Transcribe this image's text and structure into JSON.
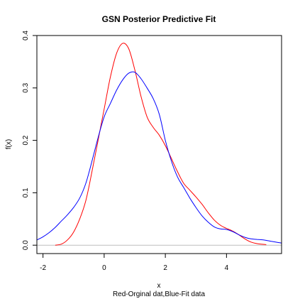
{
  "chart_data": {
    "type": "line",
    "title": "GSN Posterior Predictive Fit",
    "xlabel": "x",
    "subtitle": "Red-Orginal dat,Blue-Fit data",
    "ylabel": "f(x)",
    "xlim": [
      -2.2,
      5.8
    ],
    "ylim": [
      -0.016,
      0.4
    ],
    "xticks": [
      -2,
      0,
      2,
      4
    ],
    "xtick_labels": [
      "-2",
      "0",
      "2",
      "4"
    ],
    "yticks": [
      0.0,
      0.1,
      0.2,
      0.3,
      0.4
    ],
    "ytick_labels": [
      "0.0",
      "0.1",
      "0.2",
      "0.3",
      "0.4"
    ],
    "baseline": 0,
    "grid": false,
    "series": [
      {
        "color": "#ff0000",
        "x": [
          -1.6,
          -1.4,
          -1.2,
          -1.0,
          -0.8,
          -0.6,
          -0.4,
          -0.2,
          0.0,
          0.2,
          0.4,
          0.6,
          0.8,
          1.0,
          1.2,
          1.4,
          1.6,
          1.8,
          2.0,
          2.2,
          2.4,
          2.6,
          2.8,
          3.0,
          3.2,
          3.4,
          3.6,
          3.8,
          4.0,
          4.2,
          4.4,
          4.6,
          4.8,
          5.0,
          5.3
        ],
        "y": [
          0.0,
          0.002,
          0.01,
          0.025,
          0.05,
          0.085,
          0.14,
          0.2,
          0.26,
          0.32,
          0.365,
          0.385,
          0.375,
          0.335,
          0.285,
          0.245,
          0.225,
          0.21,
          0.19,
          0.165,
          0.14,
          0.118,
          0.105,
          0.092,
          0.078,
          0.062,
          0.048,
          0.038,
          0.032,
          0.027,
          0.02,
          0.012,
          0.006,
          0.003,
          0.001
        ]
      },
      {
        "color": "#0000ff",
        "x": [
          -2.2,
          -2.0,
          -1.8,
          -1.6,
          -1.4,
          -1.2,
          -1.0,
          -0.8,
          -0.6,
          -0.4,
          -0.2,
          0.0,
          0.2,
          0.4,
          0.6,
          0.8,
          1.0,
          1.2,
          1.4,
          1.6,
          1.8,
          2.0,
          2.2,
          2.4,
          2.6,
          2.8,
          3.0,
          3.2,
          3.4,
          3.6,
          3.8,
          4.0,
          4.2,
          4.4,
          4.6,
          4.8,
          5.0,
          5.2,
          5.4,
          5.6,
          5.8
        ],
        "y": [
          0.01,
          0.016,
          0.024,
          0.034,
          0.046,
          0.058,
          0.072,
          0.09,
          0.118,
          0.16,
          0.205,
          0.245,
          0.27,
          0.295,
          0.315,
          0.328,
          0.33,
          0.318,
          0.3,
          0.28,
          0.25,
          0.2,
          0.16,
          0.13,
          0.11,
          0.09,
          0.072,
          0.056,
          0.044,
          0.035,
          0.031,
          0.03,
          0.026,
          0.02,
          0.015,
          0.012,
          0.011,
          0.01,
          0.008,
          0.006,
          0.004
        ]
      }
    ]
  }
}
